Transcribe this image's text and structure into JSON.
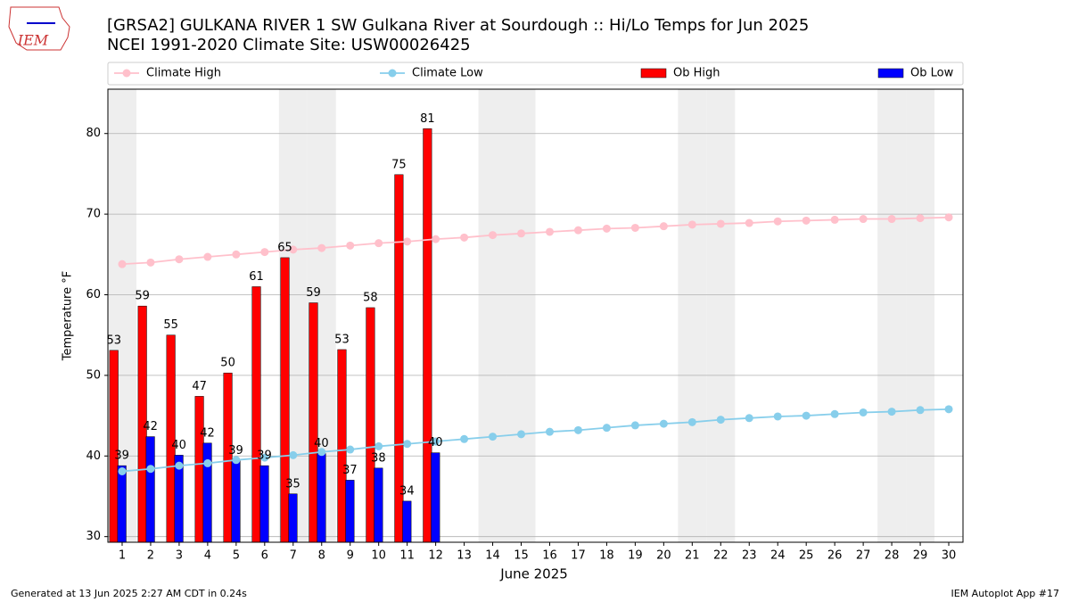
{
  "logo": "IEM",
  "footer_left": "Generated at 13 Jun 2025 2:27 AM CDT in 0.24s",
  "footer_right": "IEM Autoplot App #17",
  "chart_data": {
    "type": "bar_line",
    "title": "[GRSA2] GULKANA RIVER 1 SW Gulkana River at Sourdough :: Hi/Lo Temps for Jun 2025",
    "subtitle": "NCEI 1991-2020 Climate Site: USW00026425",
    "xlabel": "June 2025",
    "ylabel": "Temperature °F",
    "x": [
      1,
      2,
      3,
      4,
      5,
      6,
      7,
      8,
      9,
      10,
      11,
      12,
      13,
      14,
      15,
      16,
      17,
      18,
      19,
      20,
      21,
      22,
      23,
      24,
      25,
      26,
      27,
      28,
      29,
      30
    ],
    "xlim": [
      0.5,
      30.5
    ],
    "xticks": [
      1,
      2,
      3,
      4,
      5,
      6,
      7,
      8,
      9,
      10,
      11,
      12,
      13,
      14,
      15,
      16,
      17,
      18,
      19,
      20,
      21,
      22,
      23,
      24,
      25,
      26,
      27,
      28,
      29,
      30
    ],
    "ylim": [
      29.3,
      85.5
    ],
    "yticks": [
      30,
      40,
      50,
      60,
      70,
      80
    ],
    "grid": true,
    "shaded_days": [
      1,
      7,
      8,
      14,
      15,
      21,
      22,
      28,
      29
    ],
    "legend": "top",
    "series": [
      {
        "name": "Climate High",
        "kind": "line",
        "color": "#ffc0cb",
        "values": [
          63.8,
          64.0,
          64.4,
          64.7,
          65.0,
          65.3,
          65.6,
          65.8,
          66.1,
          66.4,
          66.6,
          66.9,
          67.1,
          67.4,
          67.6,
          67.8,
          68.0,
          68.2,
          68.3,
          68.5,
          68.7,
          68.8,
          68.9,
          69.1,
          69.2,
          69.3,
          69.4,
          69.4,
          69.5,
          69.6
        ]
      },
      {
        "name": "Climate Low",
        "kind": "line",
        "color": "#87ceeb",
        "values": [
          38.1,
          38.4,
          38.8,
          39.1,
          39.5,
          39.8,
          40.1,
          40.5,
          40.8,
          41.2,
          41.5,
          41.8,
          42.1,
          42.4,
          42.7,
          43.0,
          43.2,
          43.5,
          43.8,
          44.0,
          44.2,
          44.5,
          44.7,
          44.9,
          45.0,
          45.2,
          45.4,
          45.5,
          45.7,
          45.8
        ]
      },
      {
        "name": "Ob High",
        "kind": "bar",
        "color": "#ff0000",
        "values": [
          53.1,
          58.6,
          55.0,
          47.4,
          50.3,
          61.0,
          64.6,
          59.0,
          53.2,
          58.4,
          74.9,
          80.6,
          null,
          null,
          null,
          null,
          null,
          null,
          null,
          null,
          null,
          null,
          null,
          null,
          null,
          null,
          null,
          null,
          null,
          null
        ],
        "value_labels": [
          "53",
          "59",
          "55",
          "47",
          "50",
          "61",
          "65",
          "59",
          "53",
          "58",
          "75",
          "81",
          null,
          null,
          null,
          null,
          null,
          null,
          null,
          null,
          null,
          null,
          null,
          null,
          null,
          null,
          null,
          null,
          null,
          null
        ]
      },
      {
        "name": "Ob Low",
        "kind": "bar",
        "color": "#0000ff",
        "values": [
          38.8,
          42.4,
          40.1,
          41.6,
          39.4,
          38.8,
          35.3,
          40.3,
          37.0,
          38.5,
          34.4,
          40.4,
          null,
          null,
          null,
          null,
          null,
          null,
          null,
          null,
          null,
          null,
          null,
          null,
          null,
          null,
          null,
          null,
          null,
          null
        ],
        "value_labels": [
          "39",
          "42",
          "40",
          "42",
          "39",
          "39",
          "35",
          "40",
          "37",
          "38",
          "34",
          "40",
          null,
          null,
          null,
          null,
          null,
          null,
          null,
          null,
          null,
          null,
          null,
          null,
          null,
          null,
          null,
          null,
          null,
          null
        ]
      }
    ]
  }
}
